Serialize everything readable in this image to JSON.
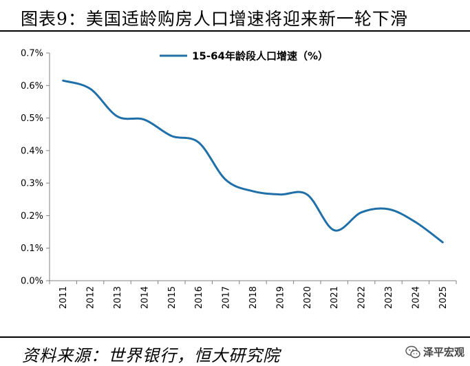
{
  "header": {
    "title": "图表9：美国适龄购房人口增速将迎来新一轮下滑"
  },
  "footer": {
    "source": "资料来源：世界银行，恒大研究院",
    "watermark_text": "泽平宏观",
    "watermark_icon": "wechat-icon"
  },
  "chart_data": {
    "type": "line",
    "x": [
      "2011",
      "2012",
      "2013",
      "2014",
      "2015",
      "2016",
      "2017",
      "2018",
      "2019",
      "2020",
      "2021",
      "2022",
      "2023",
      "2024",
      "2025"
    ],
    "series": [
      {
        "name": "15-64年龄段人口增速（%）",
        "values": [
          0.615,
          0.59,
          0.505,
          0.495,
          0.445,
          0.425,
          0.31,
          0.275,
          0.265,
          0.265,
          0.155,
          0.21,
          0.22,
          0.18,
          0.118
        ],
        "color": "#1F6FA8"
      }
    ],
    "ylim": [
      0,
      0.7
    ],
    "yticks": [
      "0.0%",
      "0.1%",
      "0.2%",
      "0.3%",
      "0.4%",
      "0.5%",
      "0.6%",
      "0.7%"
    ],
    "ytick_values": [
      0,
      0.1,
      0.2,
      0.3,
      0.4,
      0.5,
      0.6,
      0.7
    ],
    "grid": false,
    "legend_position": "top-center",
    "smooth": true
  }
}
